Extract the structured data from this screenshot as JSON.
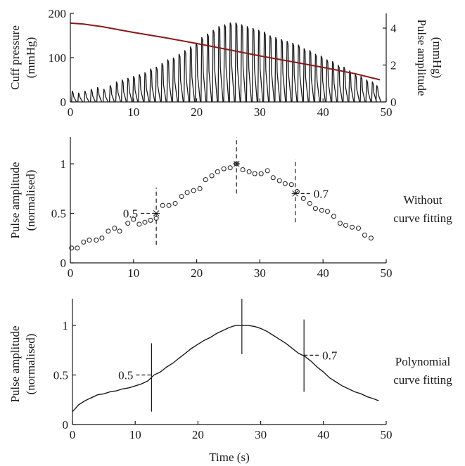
{
  "chart_data": [
    {
      "type": "line",
      "x_ticks": [
        "0",
        "10",
        "20",
        "30",
        "40",
        "50"
      ],
      "left_axis": {
        "label_line1": "Cuff pressure",
        "label_line2": "(mmHg)",
        "ticks": [
          "0",
          "100",
          "200"
        ],
        "ylim": [
          0,
          200
        ]
      },
      "right_axis": {
        "label_line1": "Pulse amplitude",
        "label_line2": "(mmHg)",
        "ticks": [
          "0",
          "2",
          "4"
        ],
        "ylim": [
          0,
          4.8
        ]
      },
      "xlim": [
        0,
        50
      ],
      "cuff_pressure": {
        "x": [
          0,
          2,
          5,
          10,
          15,
          20,
          25,
          30,
          35,
          40,
          45,
          49
        ],
        "y": [
          178,
          176,
          170,
          157,
          145,
          132,
          118,
          104,
          91,
          78,
          64,
          50
        ],
        "color": "#8b1a1a"
      },
      "pulse_beats": {
        "x": [
          0.3,
          1.3,
          2.3,
          3.3,
          4.3,
          5.3,
          6.3,
          7.3,
          8.2,
          9.1,
          10.0,
          10.9,
          11.8,
          12.7,
          13.6,
          14.5,
          15.4,
          16.3,
          17.2,
          18.1,
          19.0,
          19.9,
          20.8,
          21.7,
          22.6,
          23.5,
          24.4,
          25.3,
          26.2,
          27.1,
          28.0,
          28.9,
          29.8,
          30.7,
          31.6,
          32.5,
          33.4,
          34.3,
          35.2,
          36.1,
          37.0,
          37.9,
          38.8,
          39.7,
          40.6,
          41.5,
          42.4,
          43.3,
          44.2,
          45.1,
          46.0,
          46.9,
          47.8,
          48.5
        ],
        "amplitude": [
          0.6,
          0.5,
          0.6,
          0.7,
          0.8,
          0.7,
          0.9,
          1.1,
          1.2,
          1.3,
          1.4,
          1.5,
          1.6,
          1.8,
          1.9,
          2.1,
          2.3,
          2.4,
          2.6,
          2.8,
          3.0,
          3.2,
          3.5,
          3.7,
          3.9,
          4.1,
          4.2,
          4.3,
          4.3,
          4.2,
          4.1,
          4.0,
          3.9,
          3.8,
          3.6,
          3.5,
          3.4,
          3.3,
          3.2,
          3.1,
          2.9,
          2.8,
          2.6,
          2.5,
          2.3,
          2.2,
          2.0,
          1.9,
          1.7,
          1.5,
          1.4,
          1.2,
          1.1,
          0.9
        ],
        "color": "#1a1a1a"
      }
    },
    {
      "type": "scatter",
      "ylabel_line1": "Pulse amplitude",
      "ylabel_line2": "(normalised)",
      "x_ticks": [
        "0",
        "10",
        "20",
        "30",
        "40",
        "50"
      ],
      "y_ticks": [
        "0",
        "0.5",
        "1"
      ],
      "xlim": [
        0,
        50
      ],
      "ylim": [
        0,
        1.27
      ],
      "side_label_line1": "Without",
      "side_label_line2": "curve fitting",
      "points": {
        "x": [
          0.2,
          1.1,
          2.1,
          3.0,
          4.1,
          5.0,
          6.0,
          7.0,
          7.8,
          9.1,
          10.0,
          10.9,
          11.8,
          12.7,
          13.6,
          14.6,
          15.6,
          16.6,
          17.6,
          18.5,
          19.5,
          20.5,
          21.4,
          22.4,
          23.3,
          24.3,
          25.3,
          26.3,
          27.3,
          28.3,
          29.2,
          30.2,
          31.2,
          32.1,
          33.1,
          34.0,
          35.0,
          35.9,
          36.9,
          37.9,
          38.8,
          39.8,
          40.7,
          41.7,
          42.7,
          43.6,
          44.6,
          45.6,
          46.6,
          47.6
        ],
        "y": [
          0.15,
          0.15,
          0.21,
          0.23,
          0.23,
          0.25,
          0.32,
          0.35,
          0.32,
          0.4,
          0.44,
          0.39,
          0.41,
          0.43,
          0.45,
          0.58,
          0.58,
          0.6,
          0.67,
          0.71,
          0.73,
          0.75,
          0.84,
          0.88,
          0.92,
          0.95,
          0.96,
          1.0,
          0.94,
          0.92,
          0.9,
          0.9,
          0.93,
          0.86,
          0.83,
          0.8,
          0.79,
          0.72,
          0.65,
          0.6,
          0.55,
          0.53,
          0.52,
          0.47,
          0.4,
          0.38,
          0.36,
          0.35,
          0.28,
          0.25
        ]
      },
      "markers": [
        {
          "x": 13.6,
          "y": 0.5,
          "label": "0.5",
          "line_low": 0.18,
          "line_high": 0.76,
          "side": "left"
        },
        {
          "x": 26.3,
          "y": 1.0,
          "label": "",
          "line_low": 0.7,
          "line_high": 1.27,
          "side": "none"
        },
        {
          "x": 35.6,
          "y": 0.7,
          "label": "0.7",
          "line_low": 0.41,
          "line_high": 1.05,
          "side": "right"
        }
      ]
    },
    {
      "type": "line",
      "ylabel_line1": "Pulse amplitude",
      "ylabel_line2": "(normalised)",
      "xlabel": "Time (s)",
      "x_ticks": [
        "0",
        "10",
        "20",
        "30",
        "40",
        "50"
      ],
      "y_ticks": [
        "0",
        "0.5",
        "1"
      ],
      "xlim": [
        0,
        50
      ],
      "ylim": [
        0,
        1.27
      ],
      "side_label_line1": "Polynomial",
      "side_label_line2": "curve fitting",
      "curve": {
        "x": [
          0,
          1,
          2,
          3,
          4,
          5,
          6,
          7,
          8,
          9,
          10,
          11,
          12,
          13,
          14,
          15,
          16,
          17,
          18,
          19,
          20,
          21,
          22,
          23,
          24,
          25,
          26,
          27,
          28,
          29,
          30,
          31,
          32,
          33,
          34,
          35,
          36,
          37,
          38,
          39,
          40,
          41,
          42,
          43,
          44,
          45,
          46,
          47,
          48,
          48.8
        ],
        "y": [
          0.13,
          0.2,
          0.24,
          0.27,
          0.3,
          0.31,
          0.33,
          0.34,
          0.36,
          0.37,
          0.39,
          0.41,
          0.44,
          0.5,
          0.53,
          0.58,
          0.62,
          0.67,
          0.72,
          0.77,
          0.81,
          0.85,
          0.88,
          0.92,
          0.95,
          0.98,
          1.0,
          1.0,
          1.0,
          0.99,
          0.97,
          0.94,
          0.9,
          0.86,
          0.82,
          0.77,
          0.72,
          0.69,
          0.64,
          0.58,
          0.53,
          0.47,
          0.43,
          0.39,
          0.36,
          0.33,
          0.31,
          0.28,
          0.26,
          0.24
        ]
      },
      "markers": [
        {
          "x": 12.6,
          "y": 0.5,
          "label": "0.5",
          "line_low": 0.13,
          "line_high": 0.82,
          "side": "left"
        },
        {
          "x": 27.0,
          "y": 1.0,
          "label": "",
          "line_low": 0.71,
          "line_high": 1.27,
          "side": "none"
        },
        {
          "x": 36.9,
          "y": 0.7,
          "label": "0.7",
          "line_low": 0.33,
          "line_high": 1.06,
          "side": "right"
        }
      ]
    }
  ]
}
